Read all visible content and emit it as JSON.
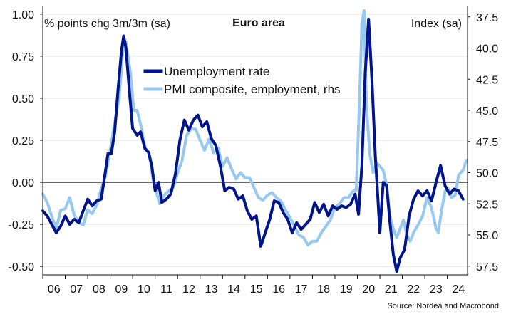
{
  "chart_data": {
    "type": "line",
    "title": "Euro area",
    "ylabel_left": "% points chg 3m/3m (sa)",
    "ylabel_right": "Index (sa)",
    "source": "Source: Nordea and Macrobond",
    "x_ticks": [
      "06",
      "07",
      "08",
      "09",
      "10",
      "11",
      "12",
      "13",
      "14",
      "15",
      "16",
      "17",
      "18",
      "19",
      "20",
      "21",
      "22",
      "23",
      "24"
    ],
    "x_range": [
      2006.0,
      2024.9
    ],
    "left_axis": {
      "min": -0.55,
      "max": 1.05,
      "ticks": [
        "1.00",
        "0.75",
        "0.50",
        "0.25",
        "0.00",
        "-0.25",
        "-0.50"
      ],
      "tick_values": [
        1.0,
        0.75,
        0.5,
        0.25,
        0.0,
        -0.25,
        -0.5
      ]
    },
    "right_axis": {
      "inverted": true,
      "min": 36.6,
      "max": 58.2,
      "ticks": [
        "37.5",
        "40.0",
        "42.5",
        "45.0",
        "47.5",
        "50.0",
        "52.5",
        "55.0",
        "57.5"
      ],
      "tick_values": [
        37.5,
        40.0,
        42.5,
        45.0,
        47.5,
        50.0,
        52.5,
        55.0,
        57.5
      ]
    },
    "zero_line": 0.0,
    "legend": [
      "Unemployment rate",
      "PMI composite, employment, rhs"
    ],
    "series": [
      {
        "name": "Unemployment rate",
        "axis": "left",
        "color": "#00148c",
        "points": [
          [
            2006.0,
            -0.17
          ],
          [
            2006.2,
            -0.2
          ],
          [
            2006.4,
            -0.25
          ],
          [
            2006.6,
            -0.3
          ],
          [
            2006.8,
            -0.26
          ],
          [
            2007.0,
            -0.2
          ],
          [
            2007.2,
            -0.25
          ],
          [
            2007.4,
            -0.22
          ],
          [
            2007.6,
            -0.24
          ],
          [
            2007.8,
            -0.17
          ],
          [
            2008.0,
            -0.1
          ],
          [
            2008.2,
            -0.14
          ],
          [
            2008.4,
            -0.11
          ],
          [
            2008.6,
            -0.1
          ],
          [
            2008.75,
            0.03
          ],
          [
            2008.9,
            0.17
          ],
          [
            2009.05,
            0.17
          ],
          [
            2009.2,
            0.3
          ],
          [
            2009.35,
            0.55
          ],
          [
            2009.5,
            0.78
          ],
          [
            2009.6,
            0.87
          ],
          [
            2009.7,
            0.8
          ],
          [
            2009.85,
            0.55
          ],
          [
            2010.0,
            0.32
          ],
          [
            2010.2,
            0.28
          ],
          [
            2010.35,
            0.3
          ],
          [
            2010.55,
            0.2
          ],
          [
            2010.7,
            0.18
          ],
          [
            2010.85,
            0.1
          ],
          [
            2011.0,
            -0.05
          ],
          [
            2011.15,
            0.0
          ],
          [
            2011.3,
            -0.12
          ],
          [
            2011.5,
            -0.1
          ],
          [
            2011.7,
            -0.07
          ],
          [
            2011.9,
            0.05
          ],
          [
            2012.1,
            0.25
          ],
          [
            2012.3,
            0.37
          ],
          [
            2012.5,
            0.31
          ],
          [
            2012.7,
            0.37
          ],
          [
            2012.9,
            0.4
          ],
          [
            2013.1,
            0.33
          ],
          [
            2013.3,
            0.36
          ],
          [
            2013.5,
            0.26
          ],
          [
            2013.7,
            0.22
          ],
          [
            2013.9,
            0.1
          ],
          [
            2014.1,
            -0.05
          ],
          [
            2014.3,
            -0.03
          ],
          [
            2014.5,
            -0.04
          ],
          [
            2014.7,
            -0.1
          ],
          [
            2014.9,
            -0.08
          ],
          [
            2015.1,
            -0.17
          ],
          [
            2015.3,
            -0.22
          ],
          [
            2015.5,
            -0.2
          ],
          [
            2015.7,
            -0.38
          ],
          [
            2015.9,
            -0.3
          ],
          [
            2016.1,
            -0.22
          ],
          [
            2016.3,
            -0.11
          ],
          [
            2016.5,
            -0.12
          ],
          [
            2016.7,
            -0.18
          ],
          [
            2016.9,
            -0.22
          ],
          [
            2017.1,
            -0.3
          ],
          [
            2017.3,
            -0.24
          ],
          [
            2017.5,
            -0.28
          ],
          [
            2017.7,
            -0.25
          ],
          [
            2017.9,
            -0.22
          ],
          [
            2018.1,
            -0.12
          ],
          [
            2018.3,
            -0.18
          ],
          [
            2018.5,
            -0.13
          ],
          [
            2018.7,
            -0.2
          ],
          [
            2018.9,
            -0.14
          ],
          [
            2019.1,
            -0.16
          ],
          [
            2019.3,
            -0.14
          ],
          [
            2019.5,
            -0.15
          ],
          [
            2019.7,
            -0.13
          ],
          [
            2019.9,
            -0.07
          ],
          [
            2020.05,
            -0.19
          ],
          [
            2020.2,
            0.1
          ],
          [
            2020.35,
            0.65
          ],
          [
            2020.5,
            0.97
          ],
          [
            2020.65,
            0.6
          ],
          [
            2020.8,
            0.15
          ],
          [
            2020.9,
            -0.07
          ],
          [
            2021.0,
            -0.3
          ],
          [
            2021.15,
            0.0
          ],
          [
            2021.3,
            -0.02
          ],
          [
            2021.45,
            -0.24
          ],
          [
            2021.6,
            -0.43
          ],
          [
            2021.75,
            -0.53
          ],
          [
            2021.9,
            -0.45
          ],
          [
            2022.1,
            -0.4
          ],
          [
            2022.3,
            -0.2
          ],
          [
            2022.5,
            -0.1
          ],
          [
            2022.7,
            -0.05
          ],
          [
            2022.9,
            -0.08
          ],
          [
            2023.1,
            -0.05
          ],
          [
            2023.3,
            -0.11
          ],
          [
            2023.5,
            0.0
          ],
          [
            2023.7,
            0.1
          ],
          [
            2023.9,
            -0.02
          ],
          [
            2024.1,
            -0.07
          ],
          [
            2024.3,
            -0.04
          ],
          [
            2024.5,
            -0.05
          ],
          [
            2024.7,
            -0.1
          ]
        ]
      },
      {
        "name": "PMI composite, employment, rhs",
        "axis": "right",
        "color": "#96c8f0",
        "points": [
          [
            2006.0,
            51.7
          ],
          [
            2006.2,
            52.4
          ],
          [
            2006.4,
            53.5
          ],
          [
            2006.6,
            54.5
          ],
          [
            2006.8,
            53.0
          ],
          [
            2007.0,
            52.9
          ],
          [
            2007.2,
            52.0
          ],
          [
            2007.4,
            53.4
          ],
          [
            2007.6,
            54.0
          ],
          [
            2007.8,
            54.2
          ],
          [
            2008.0,
            53.0
          ],
          [
            2008.2,
            53.3
          ],
          [
            2008.4,
            52.6
          ],
          [
            2008.6,
            51.3
          ],
          [
            2008.8,
            50.2
          ],
          [
            2009.0,
            48.2
          ],
          [
            2009.2,
            46.0
          ],
          [
            2009.4,
            44.0
          ],
          [
            2009.55,
            40.5
          ],
          [
            2009.7,
            39.5
          ],
          [
            2009.9,
            42.0
          ],
          [
            2010.05,
            45.0
          ],
          [
            2010.2,
            45.0
          ],
          [
            2010.4,
            46.5
          ],
          [
            2010.55,
            48.0
          ],
          [
            2010.75,
            48.5
          ],
          [
            2010.9,
            50.5
          ],
          [
            2011.05,
            51.5
          ],
          [
            2011.2,
            52.5
          ],
          [
            2011.4,
            51.8
          ],
          [
            2011.6,
            51.5
          ],
          [
            2011.8,
            51.2
          ],
          [
            2012.0,
            50.0
          ],
          [
            2012.2,
            49.0
          ],
          [
            2012.4,
            47.0
          ],
          [
            2012.6,
            46.5
          ],
          [
            2012.8,
            46.5
          ],
          [
            2013.0,
            47.4
          ],
          [
            2013.2,
            48.2
          ],
          [
            2013.4,
            47.3
          ],
          [
            2013.6,
            48.4
          ],
          [
            2013.8,
            48.0
          ],
          [
            2014.0,
            49.5
          ],
          [
            2014.2,
            48.8
          ],
          [
            2014.4,
            49.7
          ],
          [
            2014.6,
            50.5
          ],
          [
            2014.8,
            50.0
          ],
          [
            2015.0,
            50.4
          ],
          [
            2015.2,
            50.4
          ],
          [
            2015.4,
            51.2
          ],
          [
            2015.6,
            52.0
          ],
          [
            2015.8,
            52.2
          ],
          [
            2016.0,
            51.8
          ],
          [
            2016.2,
            51.6
          ],
          [
            2016.4,
            52.0
          ],
          [
            2016.6,
            52.3
          ],
          [
            2016.8,
            53.0
          ],
          [
            2017.0,
            53.6
          ],
          [
            2017.2,
            54.3
          ],
          [
            2017.4,
            55.0
          ],
          [
            2017.6,
            55.2
          ],
          [
            2017.8,
            55.8
          ],
          [
            2018.0,
            55.5
          ],
          [
            2018.2,
            55.5
          ],
          [
            2018.4,
            54.8
          ],
          [
            2018.6,
            54.3
          ],
          [
            2018.8,
            53.8
          ],
          [
            2019.0,
            52.8
          ],
          [
            2019.2,
            52.5
          ],
          [
            2019.4,
            52.0
          ],
          [
            2019.6,
            52.0
          ],
          [
            2019.8,
            51.5
          ],
          [
            2019.95,
            51.4
          ],
          [
            2020.1,
            44.0
          ],
          [
            2020.2,
            38.0
          ],
          [
            2020.3,
            37.0
          ],
          [
            2020.4,
            44.5
          ],
          [
            2020.55,
            48.5
          ],
          [
            2020.7,
            50.0
          ],
          [
            2020.85,
            49.2
          ],
          [
            2021.0,
            49.5
          ],
          [
            2021.15,
            49.8
          ],
          [
            2021.3,
            51.0
          ],
          [
            2021.45,
            53.5
          ],
          [
            2021.6,
            54.5
          ],
          [
            2021.75,
            55.2
          ],
          [
            2021.9,
            54.5
          ],
          [
            2022.05,
            53.8
          ],
          [
            2022.2,
            55.0
          ],
          [
            2022.35,
            55.5
          ],
          [
            2022.5,
            54.8
          ],
          [
            2022.7,
            54.2
          ],
          [
            2022.9,
            53.5
          ],
          [
            2023.1,
            52.0
          ],
          [
            2023.3,
            52.8
          ],
          [
            2023.5,
            54.5
          ],
          [
            2023.6,
            54.8
          ],
          [
            2023.75,
            53.0
          ],
          [
            2023.9,
            51.5
          ],
          [
            2024.05,
            51.3
          ],
          [
            2024.2,
            52.0
          ],
          [
            2024.35,
            51.8
          ],
          [
            2024.5,
            50.2
          ],
          [
            2024.7,
            49.8
          ],
          [
            2024.85,
            49.0
          ]
        ]
      }
    ]
  }
}
